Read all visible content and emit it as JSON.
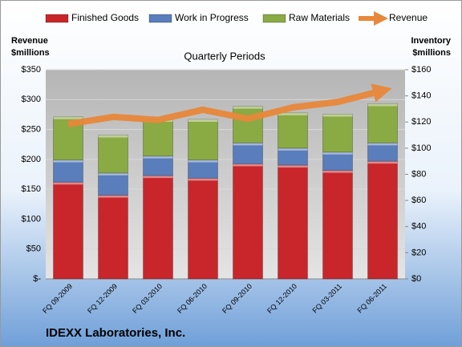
{
  "chart_data": {
    "type": "bar",
    "stacked": true,
    "title": "Quarterly Periods",
    "ylabel": [
      "Revenue",
      "$millions"
    ],
    "y2label": [
      "Inventory",
      "$millions"
    ],
    "footer": "IDEXX Laboratories, Inc.",
    "categories": [
      "FQ 09-2009",
      "FQ 12-2009",
      "FQ 03-2010",
      "FQ 06-2010",
      "FQ 09-2010",
      "FQ 12-2010",
      "FQ 03-2011",
      "FQ 06-2011"
    ],
    "series": [
      {
        "name": "Finished Goods",
        "color": "#c8262b",
        "axis": "y2",
        "values": [
          74,
          64,
          79,
          77,
          88,
          87,
          83,
          90
        ]
      },
      {
        "name": "Work in Progress",
        "color": "#5a7dbb",
        "axis": "y2",
        "values": [
          17,
          17,
          15,
          14,
          16,
          13,
          14,
          14
        ]
      },
      {
        "name": "Raw Materials",
        "color": "#8aaa44",
        "axis": "y2",
        "values": [
          33,
          29,
          28,
          31,
          28,
          27,
          29,
          30
        ]
      },
      {
        "name": "Revenue",
        "color": "#e8883a",
        "type": "line",
        "axis": "y",
        "values": [
          259,
          271,
          266,
          283,
          268,
          287,
          296,
          315
        ]
      }
    ],
    "ylim": [
      0,
      350
    ],
    "yticks": [
      {
        "value": 0,
        "label": "$-"
      },
      {
        "value": 50,
        "label": "$50"
      },
      {
        "value": 100,
        "label": "$100"
      },
      {
        "value": 150,
        "label": "$150"
      },
      {
        "value": 200,
        "label": "$200"
      },
      {
        "value": 250,
        "label": "$250"
      },
      {
        "value": 300,
        "label": "$300"
      },
      {
        "value": 350,
        "label": "$350"
      }
    ],
    "y2lim": [
      0,
      160
    ],
    "y2ticks": [
      {
        "value": 0,
        "label": "$0"
      },
      {
        "value": 20,
        "label": "$20"
      },
      {
        "value": 40,
        "label": "$40"
      },
      {
        "value": 60,
        "label": "$60"
      },
      {
        "value": 80,
        "label": "$80"
      },
      {
        "value": 100,
        "label": "$100"
      },
      {
        "value": 120,
        "label": "$120"
      },
      {
        "value": 140,
        "label": "$140"
      },
      {
        "value": 160,
        "label": "$160"
      }
    ],
    "grid": true
  }
}
